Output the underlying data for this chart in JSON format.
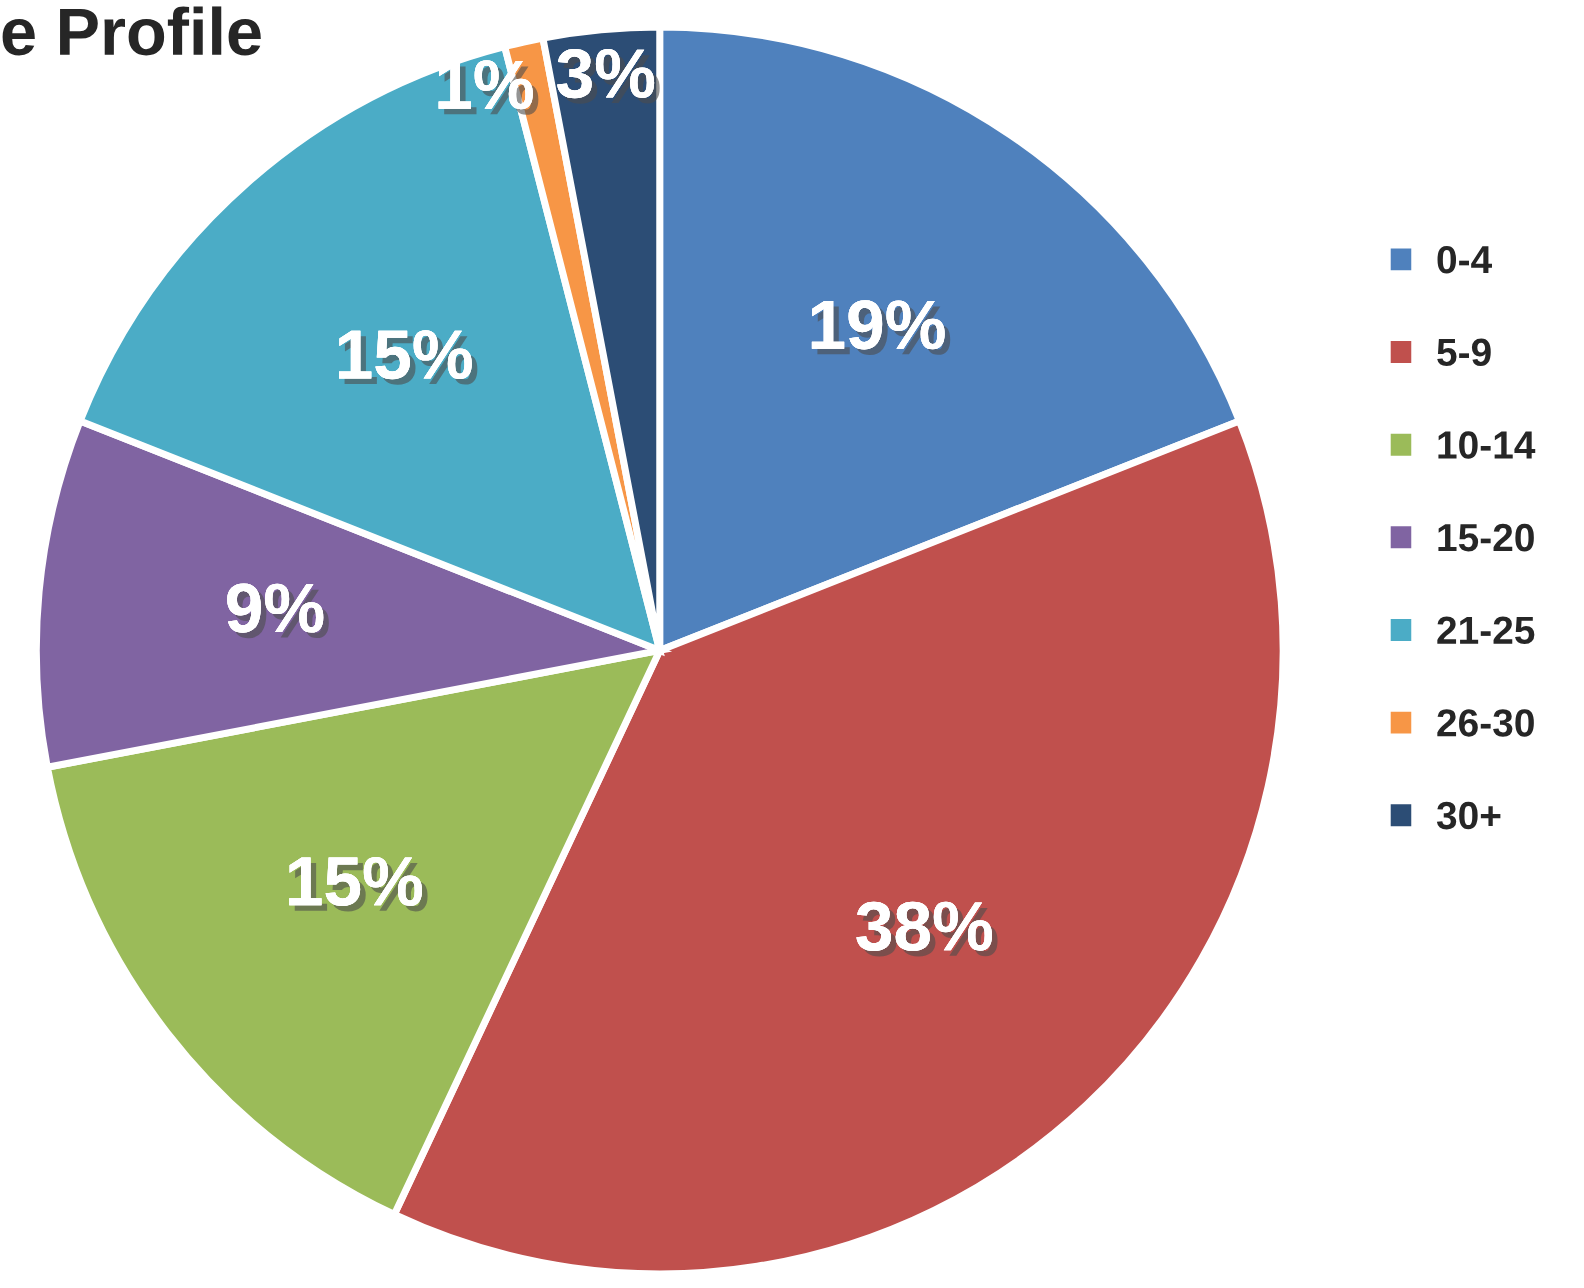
{
  "chart_data": {
    "type": "pie",
    "title": "e Profile",
    "categories": [
      "0-4",
      "5-9",
      "10-14",
      "15-20",
      "21-25",
      "26-30",
      "30+"
    ],
    "values": [
      19,
      38,
      15,
      9,
      15,
      1,
      3
    ],
    "colors": [
      "#4f81bd",
      "#c0504d",
      "#9bbb59",
      "#8064a2",
      "#4bacc6",
      "#f79646",
      "#2c4d75"
    ],
    "value_labels": [
      "19%",
      "38%",
      "15%",
      "9%",
      "15%",
      "1%",
      "3%"
    ],
    "legend": "right"
  }
}
